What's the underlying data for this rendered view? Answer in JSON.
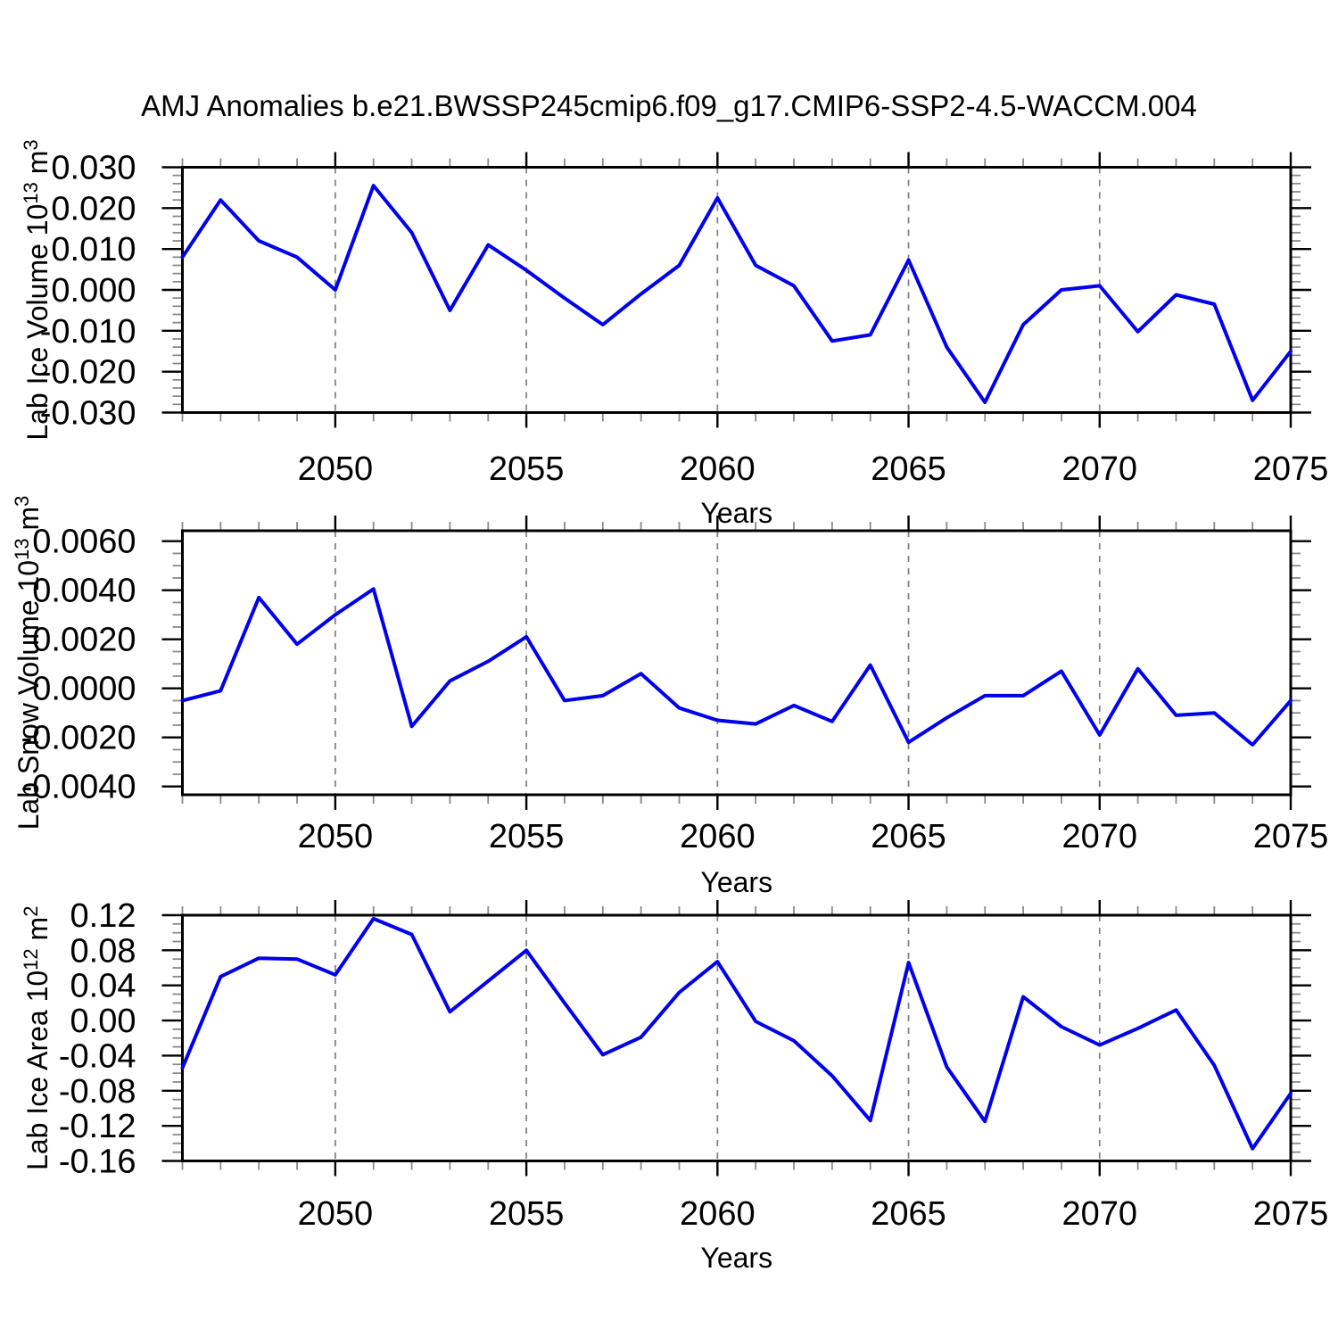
{
  "title": "AMJ Anomalies b.e21.BWSSP245cmip6.f09_g17.CMIP6-SSP2-4.5-WACCM.004",
  "chart_data": {
    "type": "line",
    "xlabel": "Years",
    "xlim": [
      2046,
      2075
    ],
    "x": [
      2046,
      2047,
      2048,
      2049,
      2050,
      2051,
      2052,
      2053,
      2054,
      2055,
      2056,
      2057,
      2058,
      2059,
      2060,
      2061,
      2062,
      2063,
      2064,
      2065,
      2066,
      2067,
      2068,
      2069,
      2070,
      2071,
      2072,
      2073,
      2074,
      2075
    ],
    "xticks": [
      2050,
      2055,
      2060,
      2065,
      2070,
      2075
    ],
    "grid_years": [
      2050,
      2055,
      2060,
      2065,
      2070
    ],
    "grid": "vertical-dashed",
    "legend": "none",
    "colors": {
      "line": "#0000ee",
      "grid": "#848484",
      "minor_tick": "#8a8a8a",
      "axis": "#000000",
      "text": "#000000",
      "background": "#ffffff"
    },
    "panels": [
      {
        "id": "lab-ice-volume",
        "ylabel_parts": [
          "Lab Ice Volume 10",
          "13",
          " m",
          "3"
        ],
        "ylim": [
          -0.03,
          0.03
        ],
        "yticks": [
          {
            "v": 0.03,
            "label": "0.030"
          },
          {
            "v": 0.02,
            "label": "0.020"
          },
          {
            "v": 0.01,
            "label": "0.010"
          },
          {
            "v": 0.0,
            "label": "0.000"
          },
          {
            "v": -0.01,
            "label": "-0.010"
          },
          {
            "v": -0.02,
            "label": "-0.020"
          },
          {
            "v": -0.03,
            "label": "-0.030"
          }
        ],
        "yminors": [
          0.028,
          0.026,
          0.024,
          0.022,
          0.018,
          0.016,
          0.014,
          0.012,
          0.008,
          0.006,
          0.004,
          0.002,
          -0.002,
          -0.004,
          -0.006,
          -0.008,
          -0.012,
          -0.014,
          -0.016,
          -0.018,
          -0.022,
          -0.024,
          -0.026,
          -0.028
        ],
        "values": [
          0.008,
          0.022,
          0.012,
          0.008,
          0.0,
          0.0255,
          0.014,
          -0.005,
          0.011,
          0.0048,
          -0.002,
          -0.0085,
          -0.001,
          0.006,
          0.0225,
          0.006,
          0.001,
          -0.0125,
          -0.011,
          0.0073,
          -0.014,
          -0.0275,
          -0.0085,
          0.0,
          0.001,
          -0.0102,
          -0.0012,
          -0.0035,
          -0.027,
          -0.015
        ]
      },
      {
        "id": "lab-snow-volume",
        "ylabel_parts": [
          "Lab Snow Volume 10",
          "13",
          " m",
          "3"
        ],
        "ylim": [
          -0.004338,
          0.006425
        ],
        "yticks": [
          {
            "v": 0.006,
            "label": "0.0060"
          },
          {
            "v": 0.004,
            "label": "0.0040"
          },
          {
            "v": 0.002,
            "label": "0.0020"
          },
          {
            "v": 0.0,
            "label": "0.0000"
          },
          {
            "v": -0.002,
            "label": "-0.0020"
          },
          {
            "v": -0.004,
            "label": "-0.0040"
          }
        ],
        "yminors": [
          0.0055,
          0.005,
          0.0045,
          0.0035,
          0.003,
          0.0025,
          0.0015,
          0.001,
          0.0005,
          -0.0005,
          -0.001,
          -0.0015,
          -0.0025,
          -0.003,
          -0.0035
        ],
        "values": [
          -0.0005,
          -0.0001,
          0.0037,
          0.0018,
          0.003,
          0.00405,
          -0.00155,
          0.0003,
          0.0011,
          0.0021,
          -0.0005,
          -0.0003,
          0.0006,
          -0.0008,
          -0.0013,
          -0.00145,
          -0.0007,
          -0.00135,
          0.00095,
          -0.0022,
          -0.0012,
          -0.0003,
          -0.0003,
          0.0007,
          -0.0019,
          0.0008,
          -0.0011,
          -0.001,
          -0.0023,
          -0.0005
        ]
      },
      {
        "id": "lab-ice-area",
        "ylabel_parts": [
          "Lab Ice Area 10",
          "12",
          " m",
          "2"
        ],
        "ylim": [
          -0.16,
          0.12
        ],
        "yticks": [
          {
            "v": 0.12,
            "label": "0.12"
          },
          {
            "v": 0.08,
            "label": "0.08"
          },
          {
            "v": 0.04,
            "label": "0.04"
          },
          {
            "v": 0.0,
            "label": "0.00"
          },
          {
            "v": -0.04,
            "label": "-0.04"
          },
          {
            "v": -0.08,
            "label": "-0.08"
          },
          {
            "v": -0.12,
            "label": "-0.12"
          },
          {
            "v": -0.16,
            "label": "-0.16"
          }
        ],
        "yminors": [
          0.11,
          0.1,
          0.09,
          0.07,
          0.06,
          0.05,
          0.03,
          0.02,
          0.01,
          -0.01,
          -0.02,
          -0.03,
          -0.05,
          -0.06,
          -0.07,
          -0.09,
          -0.1,
          -0.11,
          -0.13,
          -0.14,
          -0.15
        ],
        "values": [
          -0.054,
          0.05,
          0.071,
          0.07,
          0.052,
          0.116,
          0.098,
          0.01,
          0.045,
          0.08,
          0.02,
          -0.039,
          -0.019,
          0.032,
          0.067,
          -0.001,
          -0.023,
          -0.063,
          -0.114,
          0.066,
          -0.053,
          -0.115,
          0.027,
          -0.007,
          -0.028,
          -0.009,
          0.012,
          -0.051,
          -0.146,
          -0.083
        ]
      }
    ]
  }
}
